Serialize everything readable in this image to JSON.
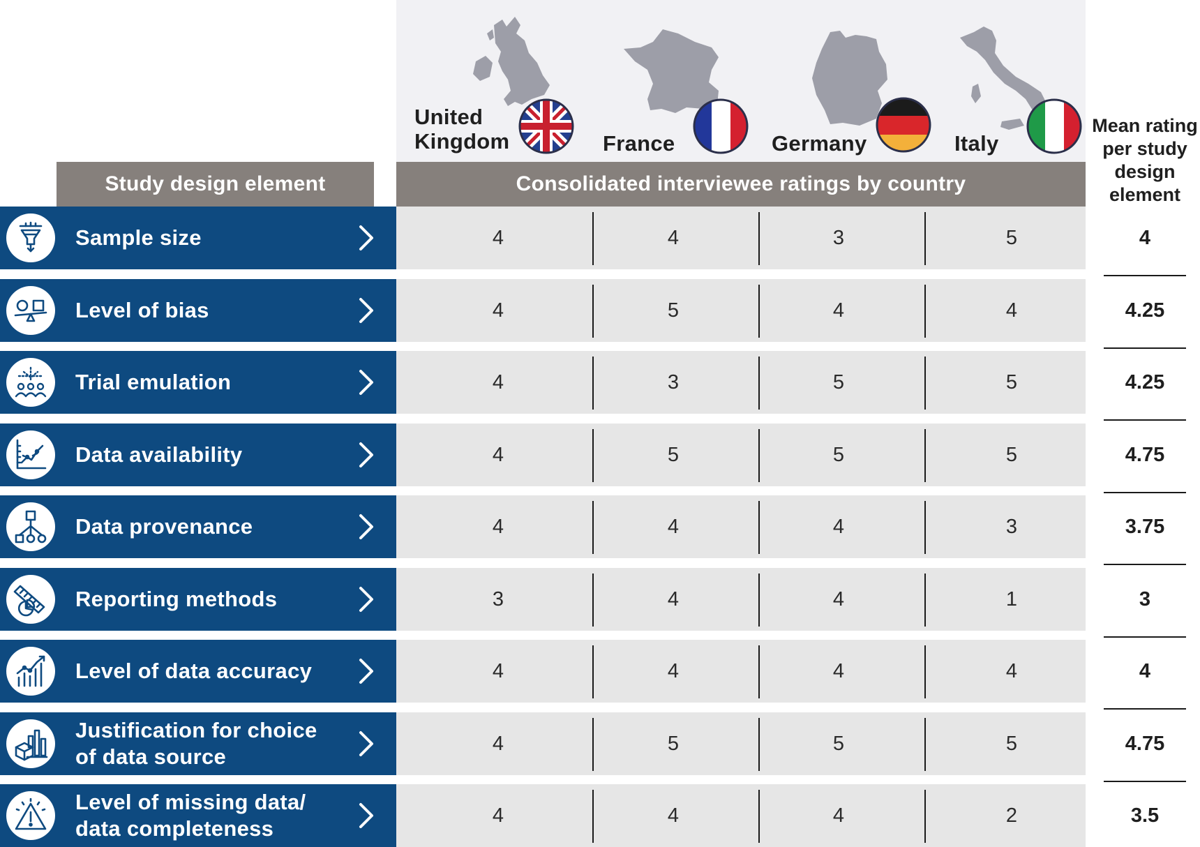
{
  "chart_data": {
    "type": "table",
    "row_header": "Study design element",
    "group_header": "Consolidated interviewee ratings by country",
    "mean_header": "Mean rating\nper study\ndesign\nelement",
    "countries": [
      {
        "name": "United\nKingdom",
        "flag": "uk-flag"
      },
      {
        "name": "France",
        "flag": "france-flag"
      },
      {
        "name": "Germany",
        "flag": "germany-flag"
      },
      {
        "name": "Italy",
        "flag": "italy-flag"
      }
    ],
    "rows": [
      {
        "label": "Sample size",
        "icon": "funnel-icon",
        "values": [
          "4",
          "4",
          "3",
          "5"
        ],
        "mean": "4"
      },
      {
        "label": "Level of bias",
        "icon": "scale-icon",
        "values": [
          "4",
          "5",
          "4",
          "4"
        ],
        "mean": "4.25"
      },
      {
        "label": "Trial emulation",
        "icon": "group-icon",
        "values": [
          "4",
          "3",
          "5",
          "5"
        ],
        "mean": "4.25"
      },
      {
        "label": "Data availability",
        "icon": "line-chart-icon",
        "values": [
          "4",
          "5",
          "5",
          "5"
        ],
        "mean": "4.75"
      },
      {
        "label": "Data provenance",
        "icon": "hierarchy-icon",
        "values": [
          "4",
          "4",
          "4",
          "3"
        ],
        "mean": "3.75"
      },
      {
        "label": "Reporting methods",
        "icon": "ruler-pie-icon",
        "values": [
          "3",
          "4",
          "4",
          "1"
        ],
        "mean": "3"
      },
      {
        "label": "Level of data accuracy",
        "icon": "trend-bars-icon",
        "values": [
          "4",
          "4",
          "4",
          "4"
        ],
        "mean": "4"
      },
      {
        "label": "Justification for choice\nof data source",
        "icon": "data-source-icon",
        "values": [
          "4",
          "5",
          "5",
          "5"
        ],
        "mean": "4.75"
      },
      {
        "label": "Level of missing data/\ndata completeness",
        "icon": "warning-icon",
        "values": [
          "4",
          "4",
          "4",
          "2"
        ],
        "mean": "3.5"
      }
    ]
  }
}
